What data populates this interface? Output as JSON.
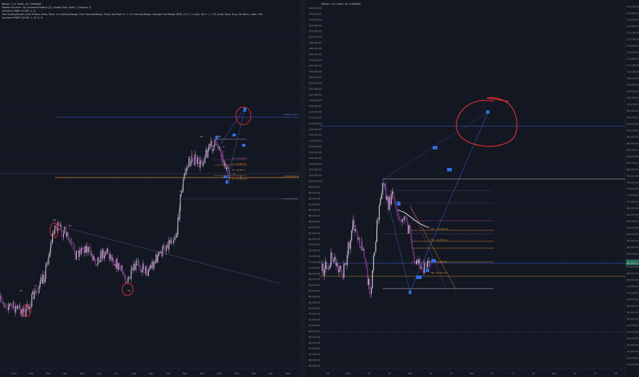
{
  "colors": {
    "background": "#131722",
    "grid": "#1c2030",
    "candle_up": "#d7d9e0",
    "candle_down": "#9c3aa0",
    "fib_blue": "#4d6df0",
    "fib_orange": "#e0912a",
    "fib_yellow": "#c9a227",
    "circle_red": "#e03030",
    "target_box": "#2f6fde",
    "wave_label": "#cfd3dc"
  },
  "left_panel": {
    "legend": [
      "Bitcoin / U.S. Dollar, 4h, COINBASE",
      "Market Structure · By LonesomeTheBlue [2], Candle Close, Solid, 1, Dashed, 2)",
      "Anchored VWAP (CLOSE, 1, 1)",
      "Gap Trading Bundle (Last 50 Bars, None, None, 1m Opening Range, 15m Opening Range, Small, Top Right, 0, 7, 1m Opening Range, Average True Range (ATR), 0.5, 1, 5, Auto, 50.0, 1, 2, 20, Small, Blue, Gray, 50, Black, close, 100)",
      "Anchored VWAP (CLOSE, 1, 20, 8, 3)"
    ],
    "x_ticks": [
      "2024",
      "Feb",
      "Mar",
      "Apr",
      "May",
      "Jun",
      "Jul",
      "Aug",
      "Sep",
      "Oct",
      "Nov",
      "Dec",
      "2025",
      "Feb",
      "Mar",
      "Apr",
      "May"
    ],
    "fib_labels": [
      "3.618(127,621.18)",
      "1.272(60,016.8)",
      "1.0(15,270.20)"
    ],
    "wave_labels": [
      "(4)",
      "(5)",
      "(W)",
      "(X)",
      "(Y)",
      "(1)",
      "(2)",
      "(3)",
      "(4)",
      "(5)",
      "iii",
      "iv",
      "v"
    ],
    "mini_fib_labels": [
      "TP - 103,506.5",
      "TP - 96,000.27",
      "TP - 96,900.1",
      "TP - 94,500.30"
    ]
  },
  "right_panel": {
    "legend": [
      "Bitcoin / U.S. Dollar, 4h, COINBASE"
    ],
    "y_ticks": [
      "160,000.00",
      "158,000.00",
      "156,000.00",
      "154,000.00",
      "152,000.00",
      "150,000.00",
      "148,000.00",
      "146,000.00",
      "144,000.00",
      "142,000.00",
      "140,000.00",
      "138,000.00",
      "136,000.00",
      "134,000.00",
      "132,000.00",
      "130,000.00",
      "128,000.00",
      "126,000.00",
      "124,000.00",
      "122,000.00",
      "120,000.00",
      "118,000.00",
      "116,000.00",
      "114,000.00",
      "112,000.00",
      "110,000.00",
      "108,000.00",
      "106,000.00",
      "104,000.00",
      "102,000.00",
      "100,000.00",
      "98,000.00",
      "96,000.00",
      "94,000.00",
      "92,000.00",
      "90,000.00",
      "88,000.00",
      "86,000.00",
      "84,000.00",
      "82,000.00",
      "80,000.00",
      "78,000.00",
      "76,000.00",
      "74,000.00",
      "72,000.00",
      "70,000.00",
      "68,000.00",
      "66,000.00",
      "64,000.00",
      "62,000.00",
      "60,000.00",
      "58,000.00",
      "56,000.00",
      "54,000.00",
      "52,000.00",
      "50,000.00",
      "48,000.00",
      "46,000.00",
      "44,000.00",
      "42,000.00",
      "40,000.00",
      "38,000.00",
      "36,000.00"
    ],
    "x_ticks": [
      "25",
      "2025",
      "13",
      "25",
      "Feb",
      "10",
      "17",
      "Mar",
      "10",
      "17",
      "24",
      "Apr",
      "14",
      "21",
      "28"
    ],
    "price_badge": "96,795.37",
    "fib_orange_labels": [
      "TP1 - 103,806.05",
      "TP2 - 99,000.00",
      "TP3 - 94,000.00",
      "TP4 - 89,000.00"
    ]
  },
  "far_right_axis": {
    "y_ticks": [
      "130,000.00",
      "128,000.00",
      "126,000.00",
      "124,000.00",
      "122,000.00",
      "120,000.00",
      "118,000.00",
      "116,000.00",
      "114,000.00",
      "112,000.00",
      "110,000.00",
      "108,000.00",
      "106,000.00",
      "104,000.00",
      "102,000.00",
      "100,000.00",
      "98,000.00",
      "96,000.00",
      "94,000.00",
      "92,000.00",
      "90,000.00",
      "88,000.00",
      "86,000.00",
      "84,000.00",
      "82,000.00",
      "80,000.00",
      "78,000.00",
      "76,000.00",
      "74,000.00",
      "72,000.00",
      "70,000.00",
      "68,000.00",
      "66,000.00",
      "64,000.00",
      "62,000.00",
      "60,000.00",
      "58,000.00",
      "56,000.00",
      "54,000.00",
      "52,000.00",
      "50,000.00",
      "48,000.00",
      "46,000.00",
      "44,000.00",
      "42,000.00",
      "40,000.00",
      "38,000.00",
      "36,000.00",
      "34,000.00",
      "32,000.00",
      "30,000.00",
      "28,000.00",
      "26,000.00",
      "24,000.00",
      "22,000.00",
      "20,000.00"
    ],
    "price_badge": "96,795.37"
  },
  "chart_data": [
    {
      "type": "line",
      "title": "Bitcoin / U.S. Dollar, 4h, COINBASE",
      "x": [
        "2024",
        "Feb",
        "Mar",
        "Apr",
        "May",
        "Jun",
        "Jul",
        "Aug",
        "Sep",
        "Oct",
        "Nov",
        "Dec",
        "2025",
        "Feb",
        "Mar"
      ],
      "series": [
        {
          "name": "",
          "values": [
            42000,
            44000,
            68000,
            66000,
            61000,
            66000,
            58000,
            60000,
            59000,
            62000,
            88000,
            97000,
            98000,
            97000,
            96000
          ]
        }
      ],
      "horizontal_levels": [
        127621.18,
        60016.8,
        15270.2
      ],
      "grid": true,
      "legend": "top-left"
    },
    {
      "type": "line",
      "title": "Bitcoin / U.S. Dollar, 4h, COINBASE",
      "x": [
        "25",
        "2025",
        "13",
        "25",
        "Feb",
        "10",
        "17",
        "Mar"
      ],
      "series": [
        {
          "name": "",
          "values": [
            94000,
            98000,
            102000,
            106000,
            102000,
            98000,
            96000,
            96795
          ]
        }
      ],
      "ylim": [
        36000,
        160000
      ],
      "grid": true,
      "legend": "top-left"
    }
  ]
}
